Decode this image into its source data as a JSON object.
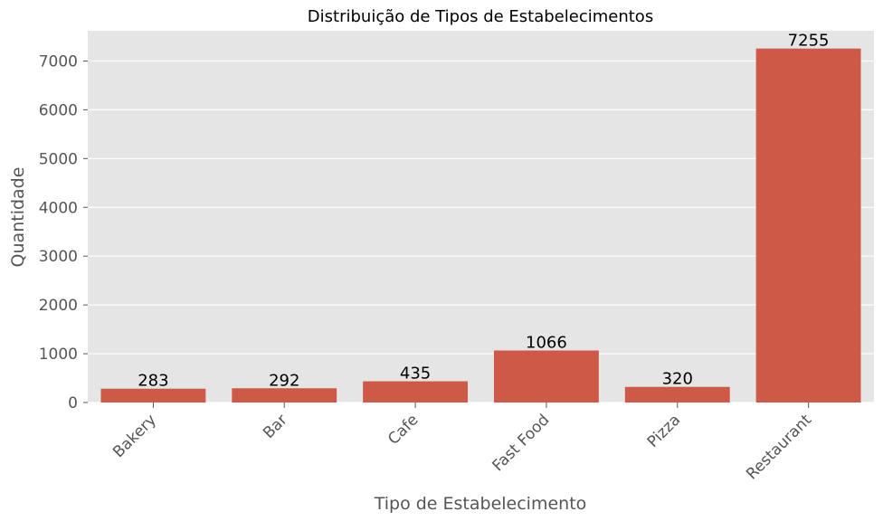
{
  "chart_data": {
    "type": "bar",
    "title": "Distribuição de Tipos de Estabelecimentos",
    "xlabel": "Tipo de Estabelecimento",
    "ylabel": "Quantidade",
    "categories": [
      "Bakery",
      "Bar",
      "Cafe",
      "Fast Food",
      "Pizza",
      "Restaurant"
    ],
    "values": [
      283,
      292,
      435,
      1066,
      320,
      7255
    ],
    "data_labels": [
      "283",
      "292",
      "435",
      "1066",
      "320",
      "7255"
    ],
    "ylim": [
      0,
      7620
    ],
    "yticks": [
      0,
      1000,
      2000,
      3000,
      4000,
      5000,
      6000,
      7000
    ],
    "ytick_labels": [
      "0",
      "1000",
      "2000",
      "3000",
      "4000",
      "5000",
      "6000",
      "7000"
    ],
    "grid": true,
    "colors": {
      "bar": "#cd5946",
      "plot_background": "#e5e5e5",
      "grid": "#ffffff",
      "tick_text": "#555555",
      "data_label": "#000000"
    }
  }
}
